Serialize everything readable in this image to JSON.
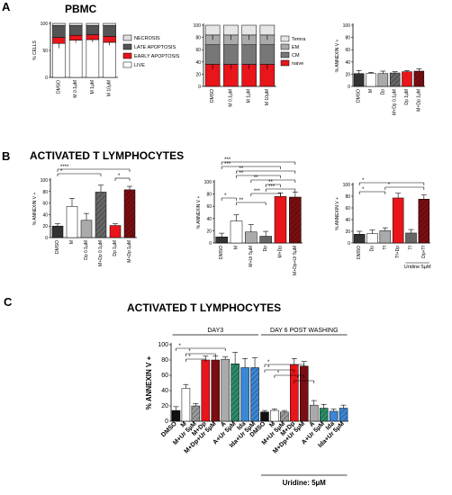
{
  "panel_letters": [
    "A",
    "B",
    "C"
  ],
  "section_titles": {
    "A": "PBMC",
    "B": "ACTIVATED T LYMPHOCYTES",
    "C": "ACTIVATED T LYMPHOCYTES"
  },
  "colors": {
    "red": "#e8151b",
    "dark_red": "#7a0e12",
    "dark_gray": "#333333",
    "mid_gray": "#666666",
    "light_gray": "#aaaaaa",
    "pale_gray": "#dedede",
    "green": "#2b8c6a",
    "blue": "#3a87d6",
    "white": "#ffffff"
  },
  "chart_data": [
    {
      "id": "A1",
      "type": "bar",
      "stacked": true,
      "ylabel": "% CELLS",
      "ylim": [
        0,
        100
      ],
      "yticks": [
        0,
        50,
        100
      ],
      "categories": [
        "DMSO",
        "M 0.1µM",
        "M 1µM",
        "M 10µM"
      ],
      "series": [
        {
          "name": "LIVE",
          "color": "#ffffff",
          "values": [
            63,
            69,
            70,
            65
          ],
          "err": [
            9,
            5,
            5,
            6
          ]
        },
        {
          "name": "EARLY APOPTOSIS",
          "color": "#e8151b",
          "values": [
            11,
            9,
            9,
            11
          ],
          "err": [
            0,
            0,
            0,
            0
          ]
        },
        {
          "name": "LATE APOPTOSIS",
          "color": "#555555",
          "values": [
            22,
            18,
            17,
            20
          ],
          "err": [
            0,
            0,
            0,
            0
          ]
        },
        {
          "name": "NECROSIS",
          "color": "#dedede",
          "values": [
            4,
            4,
            4,
            4
          ],
          "err": [
            0,
            0,
            0,
            0
          ]
        }
      ],
      "legend_order": [
        "NECROSIS",
        "LATE APOPTOSIS",
        "EARLY APOPTOSIS",
        "LIVE"
      ]
    },
    {
      "id": "A2",
      "type": "bar",
      "stacked": true,
      "ylabel": "",
      "ylim": [
        0,
        100
      ],
      "yticks": [
        0,
        20,
        40,
        60,
        80,
        100
      ],
      "categories": [
        "DMSO",
        "M 0.1µM",
        "M 1µM",
        "M 10µM"
      ],
      "series": [
        {
          "name": "naive",
          "color": "#e8151b",
          "values": [
            36,
            36,
            36,
            36
          ],
          "err": [
            8,
            8,
            8,
            8
          ]
        },
        {
          "name": "CM",
          "color": "#777777",
          "values": [
            32,
            32,
            32,
            32
          ],
          "err": [
            0,
            0,
            0,
            0
          ]
        },
        {
          "name": "EM",
          "color": "#aaaaaa",
          "values": [
            16,
            16,
            16,
            16
          ],
          "err": [
            8,
            8,
            8,
            8
          ]
        },
        {
          "name": "Temra",
          "color": "#e6e6e6",
          "values": [
            16,
            16,
            16,
            16
          ],
          "err": [
            0,
            0,
            0,
            0
          ]
        }
      ],
      "legend_order": [
        "Temra",
        "EM",
        "CM",
        "naive"
      ]
    },
    {
      "id": "A3",
      "type": "bar",
      "ylabel": "% ANNEXIN V +",
      "ylim": [
        0,
        100
      ],
      "yticks": [
        0,
        20,
        40,
        60,
        80,
        100
      ],
      "categories": [
        "DMSO",
        "M",
        "Dp",
        "M+Dp 0.1µM",
        "Dp 1µM",
        "M+Dp 1µM"
      ],
      "values": [
        21,
        21,
        21,
        22,
        24,
        25
      ],
      "err": [
        5,
        2,
        4,
        2,
        2,
        4
      ],
      "colors": [
        "#333333",
        "#ffffff",
        "#aaaaaa",
        "#666666",
        "#e8151b",
        "#7a0e12"
      ],
      "hatch": [
        false,
        false,
        false,
        true,
        false,
        true
      ]
    },
    {
      "id": "B1",
      "type": "bar",
      "ylabel": "% ANNEXIN V +",
      "ylim": [
        0,
        100
      ],
      "yticks": [
        0,
        20,
        40,
        60,
        80,
        100
      ],
      "categories": [
        "DMSO",
        "M",
        "Dp 0.1µM",
        "M+Dp 0.1µM",
        "Dp 1µM",
        "M+Dp 1µM"
      ],
      "values": [
        20,
        54,
        30,
        79,
        21,
        83
      ],
      "err": [
        4,
        14,
        12,
        12,
        3,
        6
      ],
      "colors": [
        "#333333",
        "#ffffff",
        "#aaaaaa",
        "#666666",
        "#e8151b",
        "#7a0e12"
      ],
      "hatch": [
        false,
        false,
        false,
        true,
        false,
        true
      ],
      "significance": [
        {
          "label": "****",
          "from": 0,
          "to": 5
        },
        {
          "label": "*",
          "from": 0,
          "to": 3
        },
        {
          "label": "*",
          "from": 4,
          "to": 5
        }
      ]
    },
    {
      "id": "B2",
      "type": "bar",
      "ylabel": "% ANNEXIN V +",
      "ylim": [
        0,
        100
      ],
      "yticks": [
        0,
        20,
        40,
        60,
        80,
        100
      ],
      "categories": [
        "DMSO",
        "M",
        "M+Ur 5µM",
        "Dp",
        "M+Dp",
        "M+Dp+Ur 5µM"
      ],
      "values": [
        10,
        36,
        18,
        11,
        76,
        75
      ],
      "err": [
        6,
        10,
        12,
        8,
        6,
        8
      ],
      "colors": [
        "#333333",
        "#ffffff",
        "#aaaaaa",
        "#666666",
        "#e8151b",
        "#7a0e12"
      ],
      "hatch": [
        false,
        false,
        false,
        false,
        false,
        true
      ],
      "significance": [
        {
          "label": "***",
          "from": 0,
          "to": 5
        },
        {
          "label": "***",
          "from": 0,
          "to": 4
        },
        {
          "label": "**",
          "from": 1,
          "to": 5
        },
        {
          "label": "**",
          "from": 1,
          "to": 4
        },
        {
          "label": "**",
          "from": 2,
          "to": 5
        },
        {
          "label": "**",
          "from": 3,
          "to": 4
        },
        {
          "label": "***",
          "from": 3,
          "to": 5
        },
        {
          "label": "***",
          "from": 2,
          "to": 4
        },
        {
          "label": "*",
          "from": 0,
          "to": 1
        },
        {
          "label": "**",
          "from": 1,
          "to": 3
        }
      ]
    },
    {
      "id": "B3",
      "type": "bar",
      "ylabel": "% ANNEXIN V +",
      "ylim": [
        0,
        100
      ],
      "yticks": [
        0,
        20,
        40,
        60,
        80,
        100
      ],
      "categories": [
        "DMSO",
        "Dp",
        "Tf",
        "Tf+Dp",
        "Tf",
        "Dp+Tf"
      ],
      "values": [
        15,
        16,
        21,
        77,
        17,
        75
      ],
      "err": [
        5,
        6,
        5,
        8,
        6,
        7
      ],
      "colors": [
        "#333333",
        "#ffffff",
        "#aaaaaa",
        "#e8151b",
        "#666666",
        "#7a0e12"
      ],
      "hatch": [
        false,
        false,
        false,
        false,
        false,
        true
      ],
      "group_label": "Uridine 5µM",
      "significance": [
        {
          "label": "*",
          "from": 0,
          "to": 5
        },
        {
          "label": "*",
          "from": 2,
          "to": 5
        },
        {
          "label": "*",
          "from": 0,
          "to": 2
        }
      ]
    },
    {
      "id": "C1",
      "type": "bar",
      "ylabel": "% ANNEXIN V +",
      "ylim": [
        0,
        100
      ],
      "yticks": [
        0,
        20,
        40,
        60,
        80,
        100
      ],
      "categories": [
        "DMSO",
        "M",
        "M+Ur 5µM",
        "M+Dp",
        "M+Dp+Ur 5µM",
        "A",
        "A+Ur 5µM",
        "Ida",
        "Ida+Ur 5µM",
        "DMSO",
        "M",
        "M+Ur 5µM",
        "M+Dp",
        "M+Dp+Ur 5µM",
        "A",
        "A+Ur 5µM",
        "Ida",
        "Ida+Ur 5µM"
      ],
      "values": [
        14,
        43,
        20,
        80,
        80,
        81,
        75,
        70,
        70,
        12,
        14,
        12,
        74,
        72,
        21,
        17,
        13,
        17
      ],
      "err": [
        5,
        5,
        3,
        5,
        5,
        3,
        15,
        12,
        13,
        2,
        2,
        2,
        8,
        6,
        6,
        5,
        3,
        4
      ],
      "colors": [
        "#111111",
        "#ffffff",
        "#999999",
        "#e8151b",
        "#7a0e12",
        "#aaaaaa",
        "#2b8c6a",
        "#3a87d6",
        "#3a87d6",
        "#111111",
        "#ffffff",
        "#999999",
        "#e8151b",
        "#7a0e12",
        "#aaaaaa",
        "#2b8c6a",
        "#3a87d6",
        "#3a87d6"
      ],
      "hatch": [
        false,
        false,
        true,
        false,
        false,
        false,
        true,
        false,
        true,
        false,
        false,
        true,
        false,
        false,
        false,
        true,
        false,
        true
      ],
      "groups": [
        {
          "label": "DAY3",
          "from": 0,
          "to": 8
        },
        {
          "label": "DAY 6 POST WASHING",
          "from": 9,
          "to": 17
        }
      ],
      "bottom_label": "Uridine: 5µM",
      "significance": [
        {
          "label": "*",
          "from": 0,
          "to": 5
        },
        {
          "label": "*",
          "from": 1,
          "to": 4
        },
        {
          "label": "*",
          "from": 1,
          "to": 3
        },
        {
          "label": "*",
          "from": 9,
          "to": 13
        },
        {
          "label": "*",
          "from": 9,
          "to": 12
        },
        {
          "label": "*",
          "from": 10,
          "to": 13
        },
        {
          "label": "*",
          "from": 12,
          "to": 14
        }
      ]
    }
  ]
}
